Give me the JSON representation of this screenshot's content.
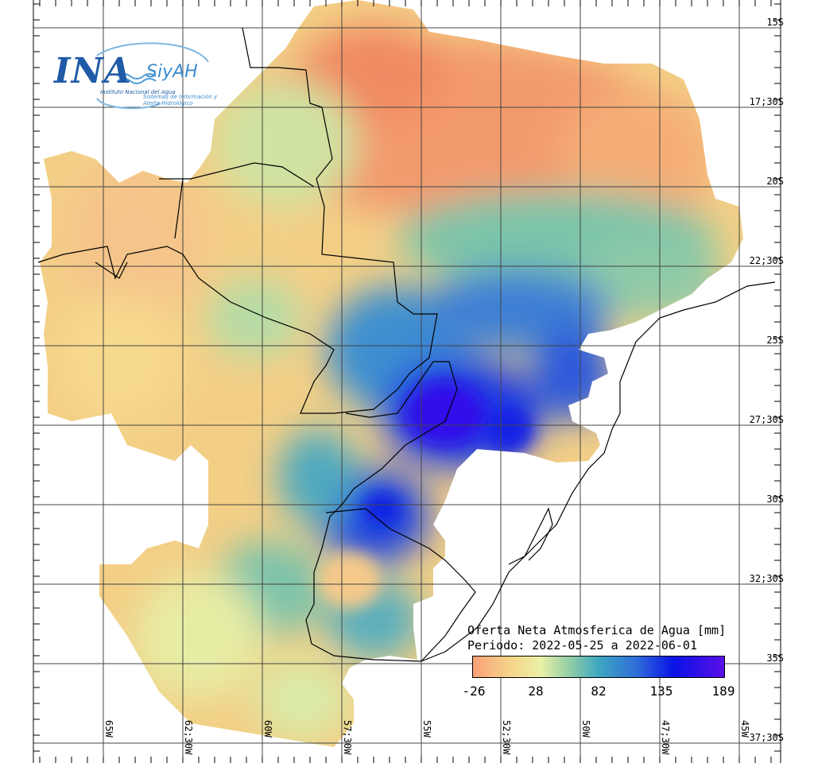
{
  "logo": {
    "ina": "INA",
    "siyah": "SiyAH",
    "line1": "Instituto Nacional del Agua",
    "line2": "Sistemas de Información y Alerta Hidrológico"
  },
  "legend": {
    "title": "Oferta Neta Atmosferica de Agua [mm]",
    "period": "Periodo: 2022-05-25 a 2022-06-01",
    "ticks": [
      "-26",
      "28",
      "82",
      "135",
      "189"
    ],
    "colors": [
      "#f8a078",
      "#f6d58a",
      "#eaf0a6",
      "#95cfa6",
      "#3ea7c0",
      "#2e6ed8",
      "#0a12e6",
      "#5a10e8"
    ]
  },
  "latitude_labels": [
    "15S",
    "17;30S",
    "20S",
    "22;30S",
    "25S",
    "27;30S",
    "30S",
    "32;30S",
    "35S",
    "37;30S"
  ],
  "longitude_labels": [
    "65W",
    "62;30W",
    "60W",
    "57;30W",
    "55W",
    "52;30W",
    "50W",
    "47;30W",
    "45W"
  ]
}
